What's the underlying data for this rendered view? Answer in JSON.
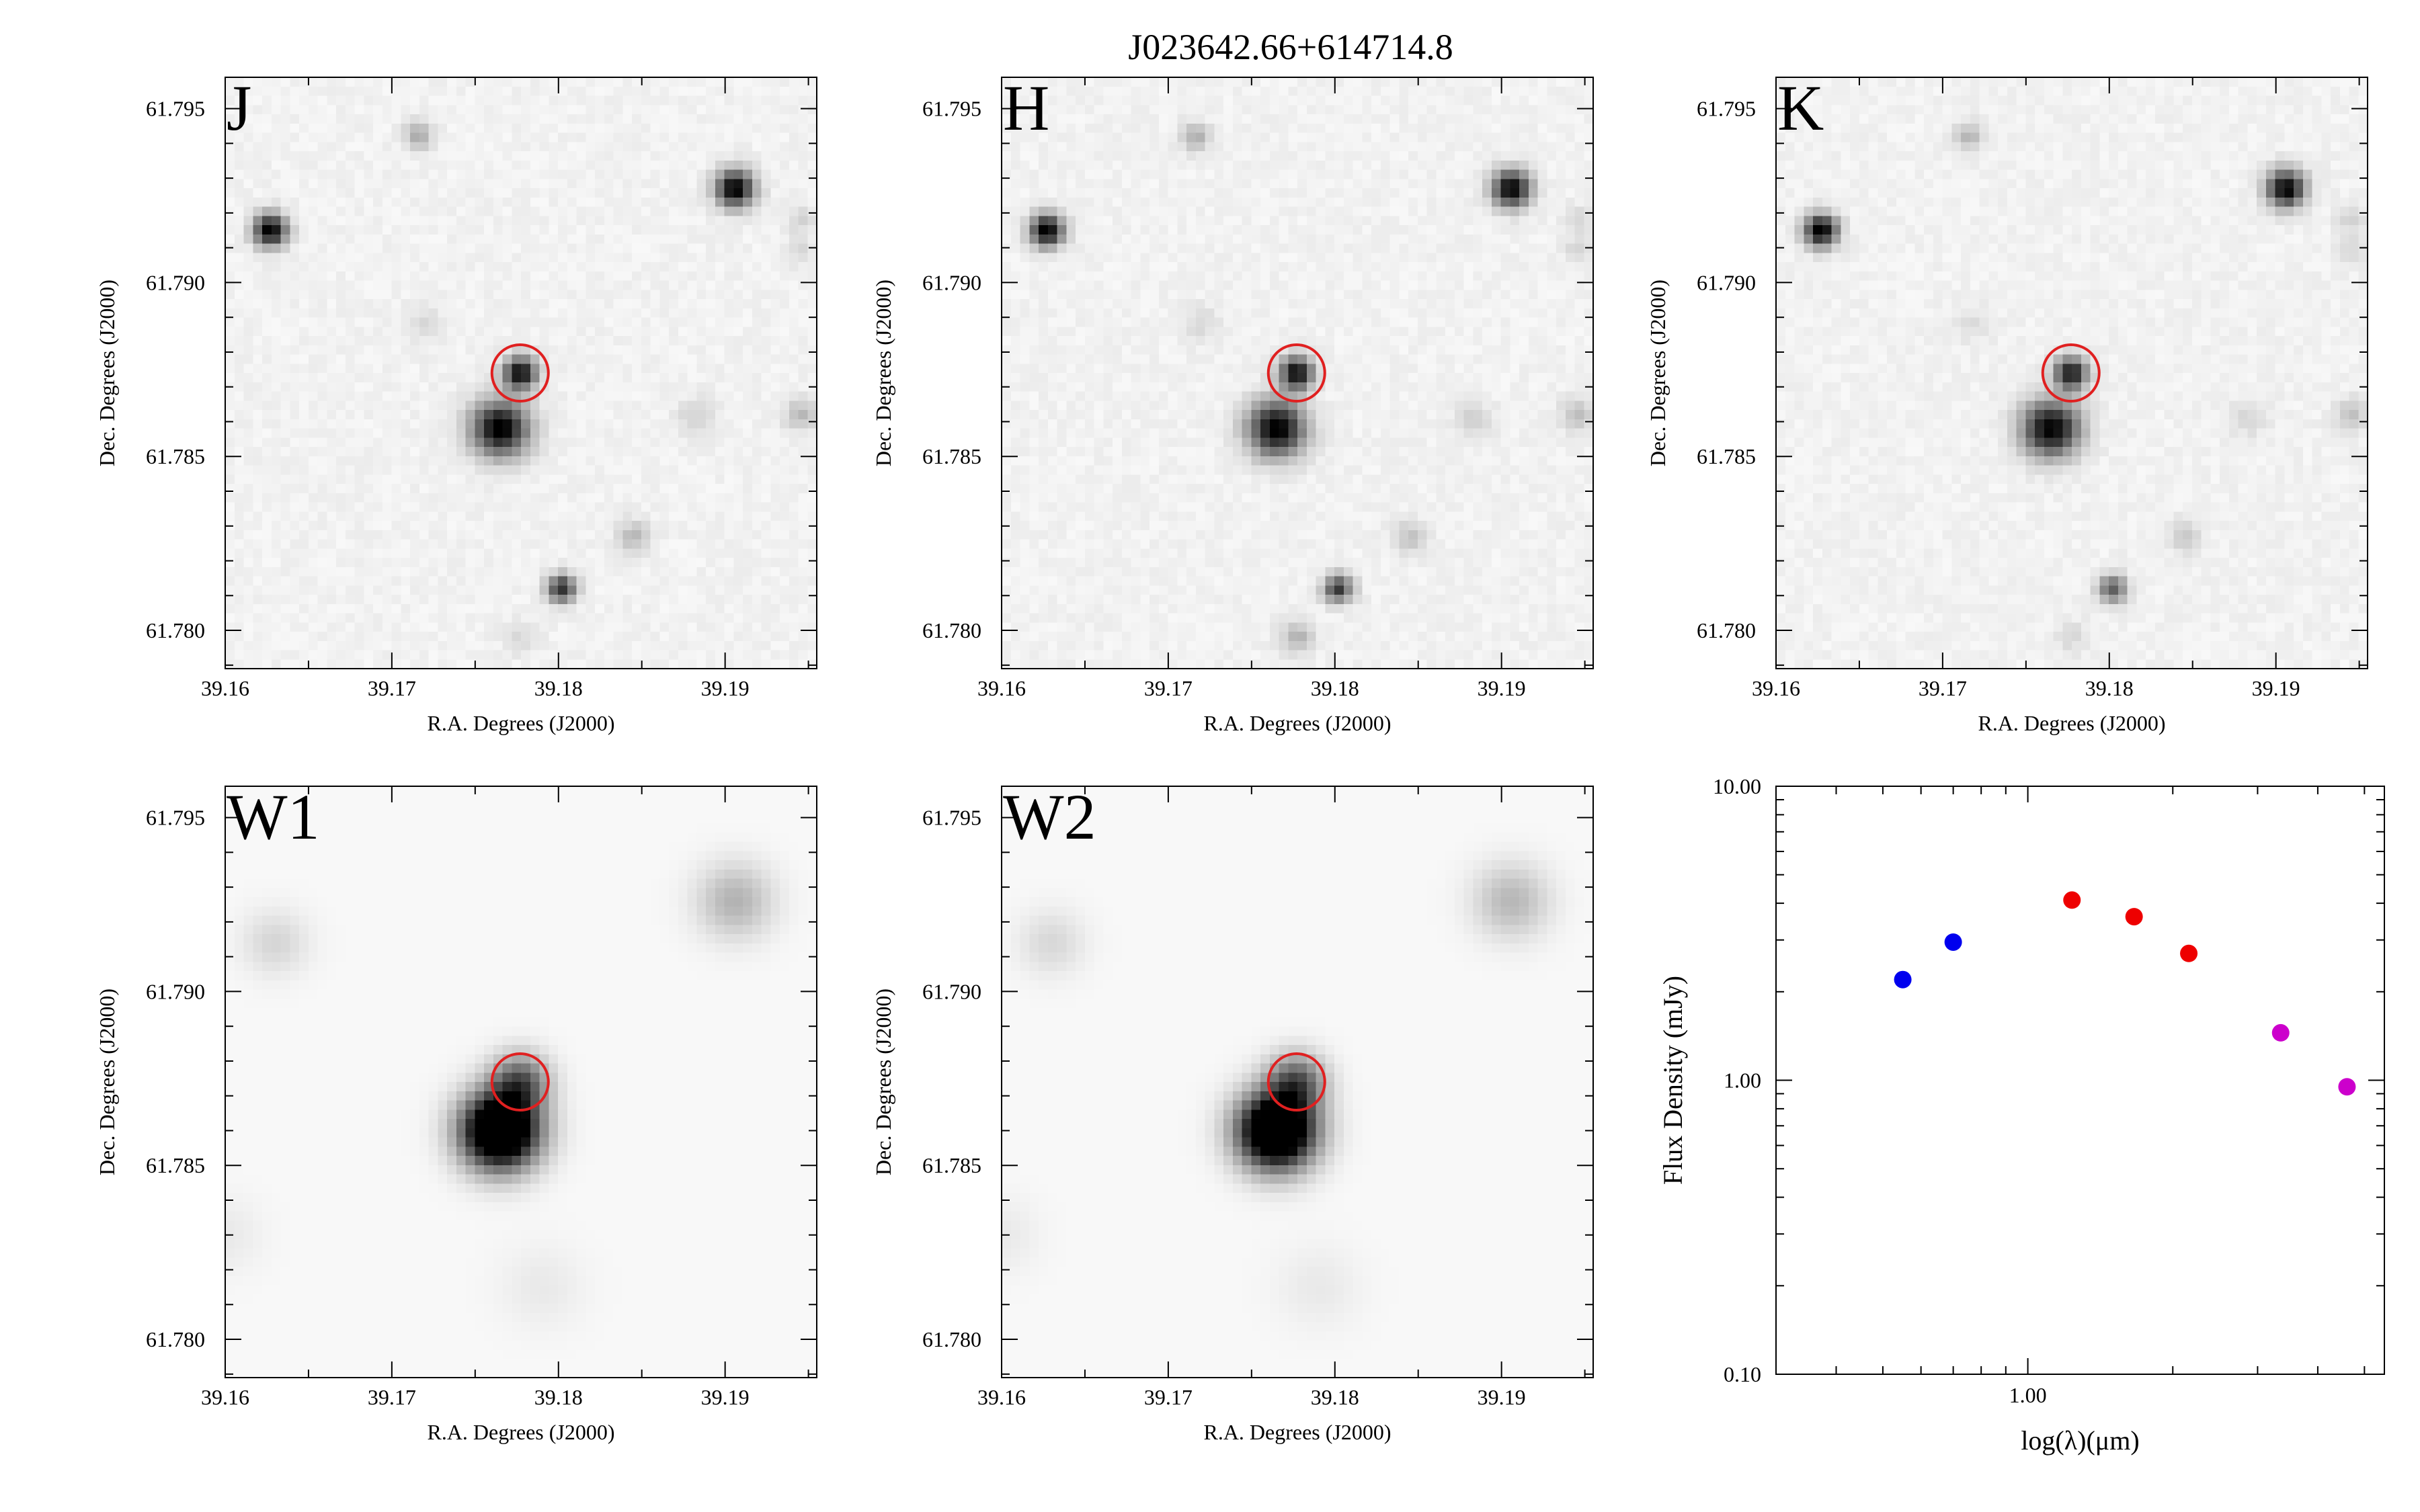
{
  "figure": {
    "title": "J023642.66+614714.8",
    "target": {
      "ra": 39.1777,
      "dec": 61.7874
    }
  },
  "colors": {
    "band_label": "#ff00ff",
    "aperture": "#e02020",
    "optical": "#0000ee",
    "nir": "#ee0000",
    "mir": "#cc00cc"
  },
  "chart_data": [
    {
      "type": "heatmap",
      "band": "J",
      "xlabel": "R.A. Degrees (J2000)",
      "ylabel": "Dec. Degrees (J2000)",
      "xlim": [
        39.16,
        39.1955
      ],
      "ylim": [
        61.7789,
        61.7959
      ],
      "xticks": [
        "39.16",
        "39.17",
        "39.18",
        "39.19"
      ],
      "yticks": [
        "61.780",
        "61.785",
        "61.790",
        "61.795"
      ],
      "sources": [
        {
          "ra": 39.1627,
          "dec": 61.7915,
          "peak": 1.0,
          "width": 0.0007
        },
        {
          "ra": 39.1906,
          "dec": 61.7927,
          "peak": 1.0,
          "width": 0.0008
        },
        {
          "ra": 39.1777,
          "dec": 61.7874,
          "peak": 0.95,
          "width": 0.0007
        },
        {
          "ra": 39.1765,
          "dec": 61.7858,
          "peak": 1.0,
          "width": 0.0012
        },
        {
          "ra": 39.1802,
          "dec": 61.7812,
          "peak": 0.8,
          "width": 0.0006
        },
        {
          "ra": 39.1716,
          "dec": 61.7942,
          "peak": 0.3,
          "width": 0.0006
        },
        {
          "ra": 39.1845,
          "dec": 61.7827,
          "peak": 0.22,
          "width": 0.0007
        },
        {
          "ra": 39.1883,
          "dec": 61.7861,
          "peak": 0.14,
          "width": 0.0008
        },
        {
          "ra": 39.1945,
          "dec": 61.7862,
          "peak": 0.22,
          "width": 0.0007
        },
        {
          "ra": 39.1945,
          "dec": 61.7918,
          "peak": 0.12,
          "width": 0.0006
        },
        {
          "ra": 39.1945,
          "dec": 61.7909,
          "peak": 0.1,
          "width": 0.0006
        },
        {
          "ra": 39.1719,
          "dec": 61.7888,
          "peak": 0.1,
          "width": 0.0008
        },
        {
          "ra": 39.1777,
          "dec": 61.7798,
          "peak": 0.1,
          "width": 0.0007
        }
      ]
    },
    {
      "type": "heatmap",
      "band": "H",
      "xlabel": "R.A. Degrees (J2000)",
      "ylabel": "Dec. Degrees (J2000)",
      "xlim": [
        39.16,
        39.1955
      ],
      "ylim": [
        61.7789,
        61.7959
      ],
      "xticks": [
        "39.16",
        "39.17",
        "39.18",
        "39.19"
      ],
      "yticks": [
        "61.780",
        "61.785",
        "61.790",
        "61.795"
      ],
      "sources": [
        {
          "ra": 39.1627,
          "dec": 61.7915,
          "peak": 1.0,
          "width": 0.0007
        },
        {
          "ra": 39.1906,
          "dec": 61.7927,
          "peak": 1.0,
          "width": 0.0008
        },
        {
          "ra": 39.1777,
          "dec": 61.7874,
          "peak": 0.95,
          "width": 0.0007
        },
        {
          "ra": 39.1765,
          "dec": 61.7858,
          "peak": 1.0,
          "width": 0.0012
        },
        {
          "ra": 39.1802,
          "dec": 61.7812,
          "peak": 0.75,
          "width": 0.0006
        },
        {
          "ra": 39.1716,
          "dec": 61.7942,
          "peak": 0.28,
          "width": 0.0006
        },
        {
          "ra": 39.1845,
          "dec": 61.7827,
          "peak": 0.18,
          "width": 0.0007
        },
        {
          "ra": 39.1883,
          "dec": 61.7861,
          "peak": 0.12,
          "width": 0.0008
        },
        {
          "ra": 39.1945,
          "dec": 61.7862,
          "peak": 0.2,
          "width": 0.0007
        },
        {
          "ra": 39.1945,
          "dec": 61.7918,
          "peak": 0.12,
          "width": 0.0006
        },
        {
          "ra": 39.1945,
          "dec": 61.7909,
          "peak": 0.1,
          "width": 0.0006
        },
        {
          "ra": 39.1719,
          "dec": 61.7888,
          "peak": 0.1,
          "width": 0.0008
        },
        {
          "ra": 39.1777,
          "dec": 61.7798,
          "peak": 0.25,
          "width": 0.0007
        }
      ]
    },
    {
      "type": "heatmap",
      "band": "K",
      "xlabel": "R.A. Degrees (J2000)",
      "ylabel": "Dec. Degrees (J2000)",
      "xlim": [
        39.16,
        39.1955
      ],
      "ylim": [
        61.7789,
        61.7959
      ],
      "xticks": [
        "39.16",
        "39.17",
        "39.18",
        "39.19"
      ],
      "yticks": [
        "61.780",
        "61.785",
        "61.790",
        "61.795"
      ],
      "sources": [
        {
          "ra": 39.1627,
          "dec": 61.7915,
          "peak": 1.0,
          "width": 0.0007
        },
        {
          "ra": 39.1906,
          "dec": 61.7927,
          "peak": 1.0,
          "width": 0.0008
        },
        {
          "ra": 39.1777,
          "dec": 61.7874,
          "peak": 0.9,
          "width": 0.0007
        },
        {
          "ra": 39.1765,
          "dec": 61.7858,
          "peak": 1.0,
          "width": 0.0012
        },
        {
          "ra": 39.1802,
          "dec": 61.7812,
          "peak": 0.6,
          "width": 0.0006
        },
        {
          "ra": 39.1716,
          "dec": 61.7942,
          "peak": 0.25,
          "width": 0.0006
        },
        {
          "ra": 39.1845,
          "dec": 61.7827,
          "peak": 0.15,
          "width": 0.0007
        },
        {
          "ra": 39.1883,
          "dec": 61.7861,
          "peak": 0.1,
          "width": 0.0008
        },
        {
          "ra": 39.1945,
          "dec": 61.7862,
          "peak": 0.2,
          "width": 0.0007
        },
        {
          "ra": 39.1945,
          "dec": 61.7918,
          "peak": 0.12,
          "width": 0.0006
        },
        {
          "ra": 39.1945,
          "dec": 61.7909,
          "peak": 0.12,
          "width": 0.0006
        },
        {
          "ra": 39.1719,
          "dec": 61.7888,
          "peak": 0.08,
          "width": 0.0008
        },
        {
          "ra": 39.1777,
          "dec": 61.7798,
          "peak": 0.1,
          "width": 0.0007
        }
      ]
    },
    {
      "type": "heatmap",
      "band": "W1",
      "xlabel": "R.A. Degrees (J2000)",
      "ylabel": "Dec. Degrees (J2000)",
      "xlim": [
        39.16,
        39.1955
      ],
      "ylim": [
        61.7789,
        61.7959
      ],
      "xticks": [
        "39.16",
        "39.17",
        "39.18",
        "39.19"
      ],
      "yticks": [
        "61.780",
        "61.785",
        "61.790",
        "61.795"
      ],
      "sources": [
        {
          "ra": 39.1765,
          "dec": 61.786,
          "peak": 1.6,
          "width": 0.0016
        },
        {
          "ra": 39.1777,
          "dec": 61.7874,
          "peak": 0.6,
          "width": 0.0012
        },
        {
          "ra": 39.1906,
          "dec": 61.7926,
          "peak": 0.28,
          "width": 0.0016
        },
        {
          "ra": 39.163,
          "dec": 61.7914,
          "peak": 0.14,
          "width": 0.0014
        },
        {
          "ra": 39.179,
          "dec": 61.7815,
          "peak": 0.06,
          "width": 0.0018
        },
        {
          "ra": 39.16,
          "dec": 61.783,
          "peak": 0.06,
          "width": 0.0016
        }
      ]
    },
    {
      "type": "heatmap",
      "band": "W2",
      "xlabel": "R.A. Degrees (J2000)",
      "ylabel": "Dec. Degrees (J2000)",
      "xlim": [
        39.16,
        39.1955
      ],
      "ylim": [
        61.7789,
        61.7959
      ],
      "xticks": [
        "39.16",
        "39.17",
        "39.18",
        "39.19"
      ],
      "yticks": [
        "61.780",
        "61.785",
        "61.790",
        "61.795"
      ],
      "sources": [
        {
          "ra": 39.1765,
          "dec": 61.786,
          "peak": 1.6,
          "width": 0.0016
        },
        {
          "ra": 39.1777,
          "dec": 61.7874,
          "peak": 0.6,
          "width": 0.0012
        },
        {
          "ra": 39.1906,
          "dec": 61.7926,
          "peak": 0.26,
          "width": 0.0016
        },
        {
          "ra": 39.163,
          "dec": 61.7914,
          "peak": 0.13,
          "width": 0.0014
        },
        {
          "ra": 39.179,
          "dec": 61.7815,
          "peak": 0.06,
          "width": 0.0018
        },
        {
          "ra": 39.16,
          "dec": 61.783,
          "peak": 0.06,
          "width": 0.0016
        }
      ]
    },
    {
      "type": "scatter",
      "xlabel": "log(λ)(μm)",
      "ylabel": "Flux Density (mJy)",
      "xscale": "log",
      "yscale": "log",
      "xlim": [
        0.3,
        5.5
      ],
      "ylim": [
        0.1,
        10
      ],
      "xticks": [
        "1.00"
      ],
      "yticks": [
        "0.10",
        "1.00",
        "10.00"
      ],
      "series": [
        {
          "group": "optical",
          "x": [
            0.55,
            0.7
          ],
          "y": [
            2.2,
            2.95
          ],
          "yerr": [
            0.05,
            0.06
          ]
        },
        {
          "group": "nir",
          "x": [
            1.235,
            1.662,
            2.159
          ],
          "y": [
            4.1,
            3.6,
            2.7
          ],
          "yerr": [
            0.15,
            0.12,
            0.1
          ]
        },
        {
          "group": "mir",
          "x": [
            3.35,
            4.6
          ],
          "y": [
            1.45,
            0.95
          ],
          "yerr": [
            0.08,
            0.05
          ]
        }
      ]
    }
  ]
}
